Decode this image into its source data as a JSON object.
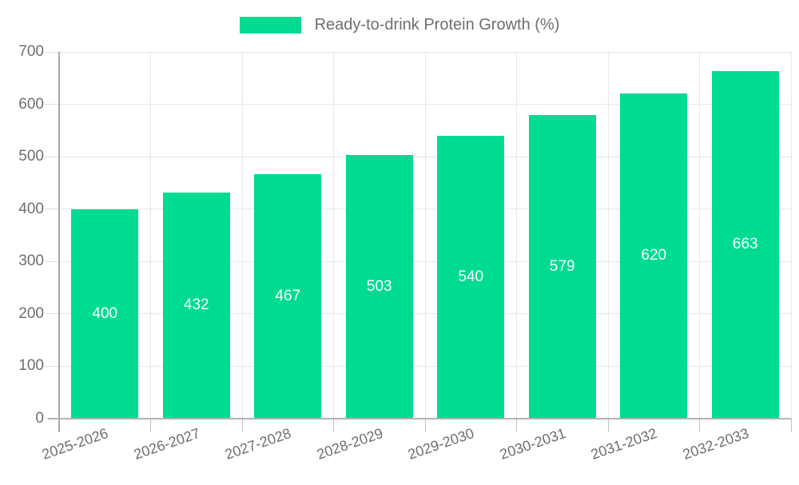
{
  "chart_data": {
    "type": "bar",
    "title": "Ready-to-drink Protein Growth (%)",
    "legend": {
      "label": "Ready-to-drink Protein Growth (%)",
      "position": "top-center"
    },
    "categories": [
      "2025-2026",
      "2026-2027",
      "2027-2028",
      "2028-2029",
      "2029-2030",
      "2030-2031",
      "2031-2032",
      "2032-2033"
    ],
    "series": [
      {
        "name": "Ready-to-drink Protein Growth (%)",
        "values": [
          400,
          432,
          467,
          503,
          540,
          579,
          620,
          663
        ]
      }
    ],
    "value_labels": {
      "visible": true,
      "position": "inside-middle",
      "color": "#ffffff"
    },
    "xlabel": "",
    "ylabel": "",
    "ylim": [
      0,
      700
    ],
    "yticks": [
      0,
      100,
      200,
      300,
      400,
      500,
      600,
      700
    ],
    "grid": {
      "horizontal": true,
      "vertical": true
    },
    "colors": {
      "bar": "#00db94",
      "grid": "#e7e7e7",
      "axis": "#a8a8a8",
      "tick_text": "#6e6e6e",
      "legend_text": "#6e6e6e",
      "background": "#ffffff"
    }
  }
}
